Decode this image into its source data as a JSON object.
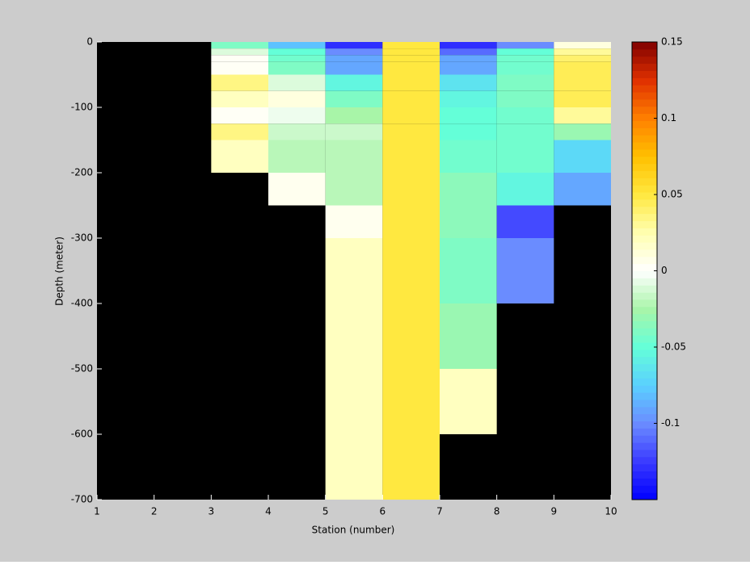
{
  "chart_data": {
    "type": "heatmap",
    "xlabel": "Station (number)",
    "ylabel": "Depth (meter)",
    "x_edges": [
      1,
      2,
      3,
      4,
      5,
      6,
      7,
      8,
      9,
      10
    ],
    "y_edges": [
      0,
      -10,
      -20,
      -30,
      -50,
      -75,
      -100,
      -125,
      -150,
      -200,
      -250,
      -300,
      -400,
      -500,
      -600,
      -700
    ],
    "z": [
      [
        null,
        null,
        -0.04,
        -0.08,
        -0.13,
        0.05,
        -0.13,
        -0.1,
        0.01
      ],
      [
        null,
        null,
        -0.01,
        -0.05,
        -0.1,
        0.05,
        -0.11,
        -0.05,
        0.03
      ],
      [
        null,
        null,
        0.003,
        -0.045,
        -0.09,
        0.05,
        -0.09,
        -0.045,
        0.04
      ],
      [
        null,
        null,
        0.003,
        -0.04,
        -0.09,
        0.05,
        -0.09,
        -0.045,
        0.045
      ],
      [
        null,
        null,
        0.035,
        -0.01,
        -0.055,
        0.05,
        -0.065,
        -0.04,
        0.045
      ],
      [
        null,
        null,
        0.02,
        0.01,
        -0.04,
        0.05,
        -0.055,
        -0.04,
        0.045
      ],
      [
        null,
        null,
        0.003,
        -0.005,
        -0.025,
        0.05,
        -0.05,
        -0.045,
        0.03
      ],
      [
        null,
        null,
        0.035,
        -0.015,
        -0.015,
        0.05,
        -0.05,
        -0.045,
        -0.03
      ],
      [
        null,
        null,
        0.02,
        -0.02,
        -0.02,
        0.05,
        -0.045,
        -0.045,
        -0.07
      ],
      [
        null,
        null,
        null,
        0.005,
        -0.02,
        0.05,
        -0.035,
        -0.055,
        -0.09
      ],
      [
        null,
        null,
        null,
        null,
        0.005,
        0.05,
        -0.035,
        -0.12,
        null
      ],
      [
        null,
        null,
        null,
        null,
        0.02,
        0.05,
        -0.04,
        -0.1,
        null
      ],
      [
        null,
        null,
        null,
        null,
        0.02,
        0.05,
        -0.03,
        null,
        null
      ],
      [
        null,
        null,
        null,
        null,
        0.02,
        0.05,
        0.02,
        null,
        null
      ],
      [
        null,
        null,
        null,
        null,
        0.02,
        0.05,
        null,
        null,
        null
      ]
    ],
    "xlim": [
      1,
      10
    ],
    "ylim": [
      -700,
      0
    ],
    "xticks": [
      1,
      2,
      3,
      4,
      5,
      6,
      7,
      8,
      9,
      10
    ],
    "yticks": [
      0,
      -100,
      -200,
      -300,
      -400,
      -500,
      -600,
      -700
    ],
    "clim": [
      -0.15,
      0.15
    ],
    "cticks": [
      -0.1,
      -0.05,
      0,
      0.05,
      0.1,
      0.15
    ],
    "colormap": [
      "#0000ff",
      "#3a3aff",
      "#6a8cff",
      "#5ad0ff",
      "#64ffd8",
      "#a8f5a8",
      "#ffffff",
      "#ffffb0",
      "#ffe840",
      "#ffc000",
      "#ff8000",
      "#e03000",
      "#800000"
    ],
    "nan_color": "#000000",
    "background": "#cccccc"
  }
}
